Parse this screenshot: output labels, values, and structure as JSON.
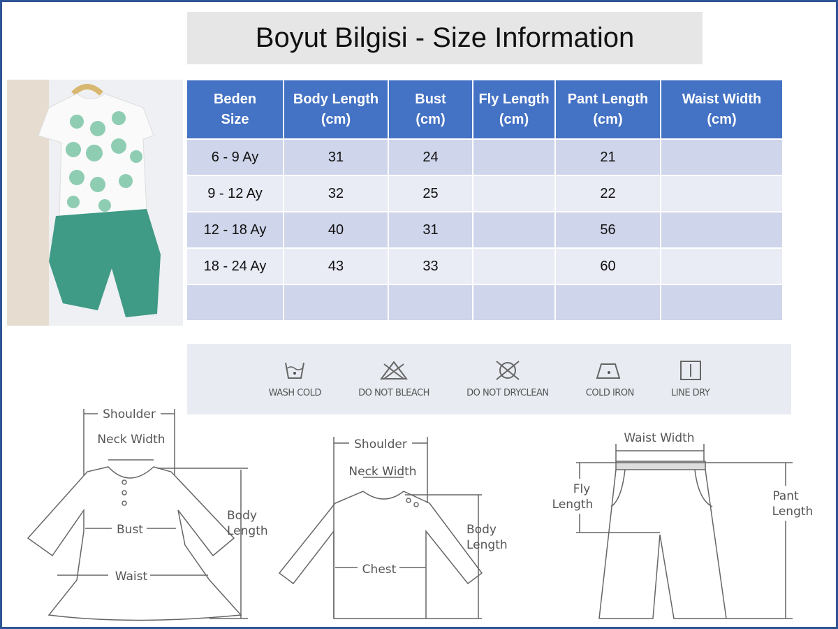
{
  "title": "Boyut Bilgisi - Size Information",
  "table": {
    "headers": [
      "Beden\nSize",
      "Body Length\n(cm)",
      "Bust\n(cm)",
      "Fly Length\n(cm)",
      "Pant Length\n(cm)",
      "Waist Width\n(cm)"
    ],
    "rows": [
      [
        "6 - 9 Ay",
        "31",
        "24",
        "",
        "21",
        ""
      ],
      [
        "9 - 12 Ay",
        "32",
        "25",
        "",
        "22",
        ""
      ],
      [
        "12 - 18 Ay",
        "40",
        "31",
        "",
        "56",
        ""
      ],
      [
        "18 - 24 Ay",
        "43",
        "33",
        "",
        "60",
        ""
      ],
      [
        "",
        "",
        "",
        "",
        "",
        ""
      ]
    ]
  },
  "care": [
    {
      "icon": "wash-cold-icon",
      "label": "WASH COLD"
    },
    {
      "icon": "do-not-bleach-icon",
      "label": "DO NOT BLEACH"
    },
    {
      "icon": "do-not-dryclean-icon",
      "label": "DO NOT DRYCLEAN"
    },
    {
      "icon": "cold-iron-icon",
      "label": "COLD IRON"
    },
    {
      "icon": "line-dry-icon",
      "label": "LINE DRY"
    }
  ],
  "diagrams": {
    "dress": {
      "shoulder": "Shoulder",
      "neck": "Neck Width",
      "bust": "Bust",
      "waist": "Waist",
      "body1": "Body",
      "body2": "Length"
    },
    "top": {
      "shoulder": "Shoulder",
      "neck": "Neck Width",
      "chest": "Chest",
      "body1": "Body",
      "body2": "Length"
    },
    "pants": {
      "waist": "Waist Width",
      "fly1": "Fly",
      "fly2": "Length",
      "pant1": "Pant",
      "pant2": "Length"
    }
  },
  "colors": {
    "header": "#4472c4",
    "row_odd": "#cfd5ea",
    "row_even": "#e9ebf5",
    "frame": "#2f5597"
  }
}
